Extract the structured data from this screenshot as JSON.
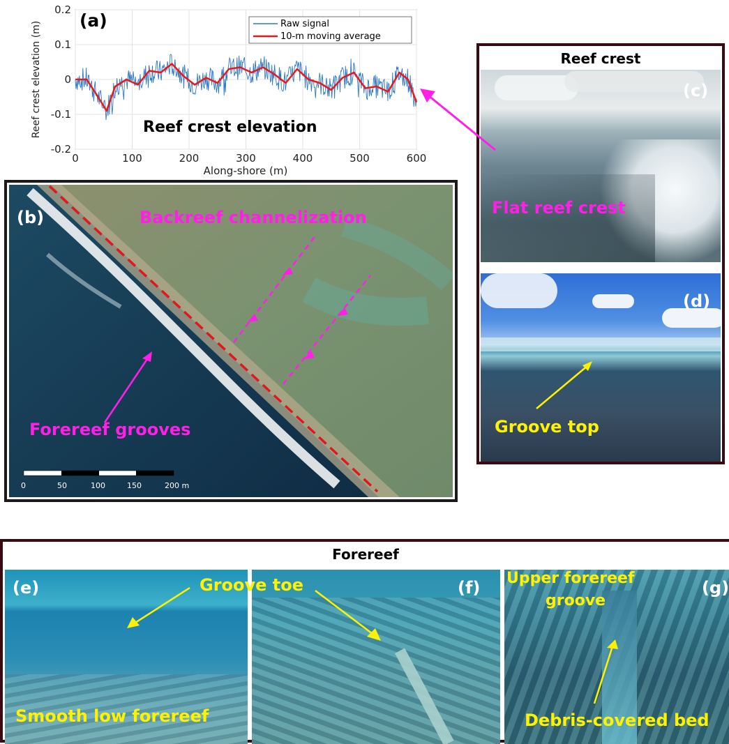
{
  "panel_a": {
    "label": "(a)",
    "annotation": "Reef crest elevation",
    "chart_data": {
      "type": "line",
      "xlabel": "Along-shore (m)",
      "ylabel": "Reef crest elevation (m)",
      "xlim": [
        0,
        600
      ],
      "ylim": [
        -0.2,
        0.2
      ],
      "x_ticks": [
        "0",
        "100",
        "200",
        "300",
        "400",
        "500",
        "600"
      ],
      "y_ticks": [
        "0.2",
        "0.1",
        "0",
        "-0.1",
        "-0.2"
      ],
      "legend_position": "top-right",
      "series": [
        {
          "name": "Raw signal",
          "color": "#2b78c2",
          "amplitude": 0.035
        },
        {
          "name": "10-m moving average",
          "color": "#e8191c",
          "x": [
            0,
            20,
            40,
            55,
            70,
            90,
            110,
            130,
            150,
            170,
            190,
            210,
            230,
            250,
            270,
            290,
            310,
            330,
            350,
            370,
            390,
            410,
            430,
            450,
            470,
            490,
            510,
            530,
            550,
            570,
            585,
            600
          ],
          "values": [
            0.0,
            0.0,
            -0.05,
            -0.09,
            -0.02,
            0.0,
            -0.015,
            0.025,
            0.02,
            0.045,
            0.01,
            -0.015,
            0.005,
            -0.01,
            0.03,
            0.035,
            0.02,
            0.035,
            0.015,
            -0.01,
            0.03,
            0.0,
            -0.01,
            -0.03,
            0.005,
            0.02,
            -0.025,
            -0.02,
            -0.035,
            0.02,
            0.0,
            -0.065
          ]
        }
      ]
    }
  },
  "panel_b": {
    "label": "(b)",
    "backreef": "Backreef channelization",
    "forereef": "Forereef grooves",
    "scale_ticks": [
      "0",
      "50",
      "100",
      "150",
      "200 m"
    ]
  },
  "panel_c": {
    "title": "Reef crest",
    "label": "(c)",
    "annotation": "Flat reef crest"
  },
  "panel_d": {
    "label": "(d)",
    "annotation": "Groove top"
  },
  "forereef": {
    "title": "Forereef",
    "e_label": "(e)",
    "e_annotation": "Smooth low forereef",
    "groove_toe": "Groove toe",
    "f_label": "(f)",
    "g_label": "(g)",
    "g_annotation_1": "Upper forereef",
    "g_annotation_2": "groove",
    "debris": "Debris-covered bed"
  },
  "colors": {
    "magenta": "#ff1fe6",
    "yellow": "#fff200",
    "border_dark": "#3a0a12"
  }
}
